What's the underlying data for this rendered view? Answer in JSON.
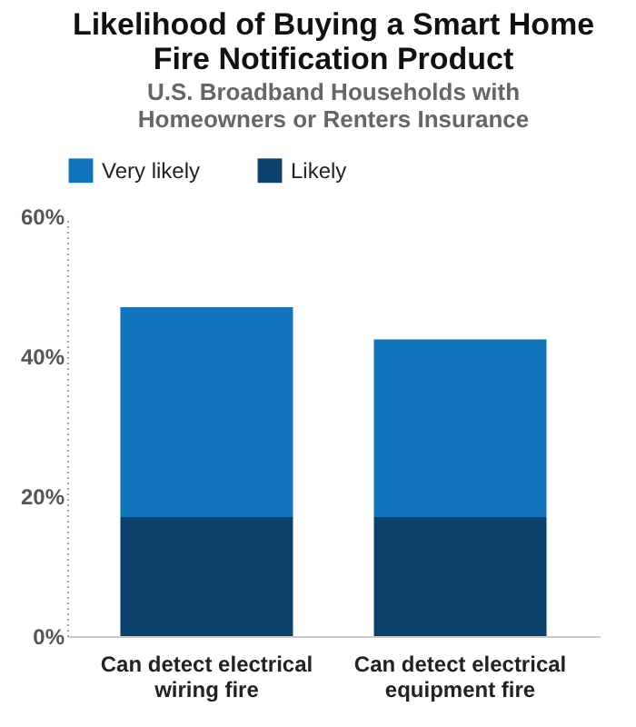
{
  "chart_data": {
    "type": "bar",
    "stacked": true,
    "title": "Likelihood of Buying a Smart Home Fire Notification Product",
    "subtitle": "U.S. Broadband Households with Homeowners or Renters Insurance",
    "categories": [
      "Can detect electrical wiring fire",
      "Can detect electrical equipment fire"
    ],
    "series": [
      {
        "name": "Likely",
        "color": "#0d416d",
        "values": [
          17,
          17
        ]
      },
      {
        "name": "Very likely",
        "color": "#1174bc",
        "values": [
          30,
          25.4
        ]
      }
    ],
    "ylim": [
      0,
      60
    ],
    "yticks": [
      {
        "value": 0,
        "label": "0%"
      },
      {
        "value": 20,
        "label": "20%"
      },
      {
        "value": 40,
        "label": "40%"
      },
      {
        "value": 60,
        "label": "60%"
      }
    ],
    "grid": false,
    "legend": "top"
  }
}
